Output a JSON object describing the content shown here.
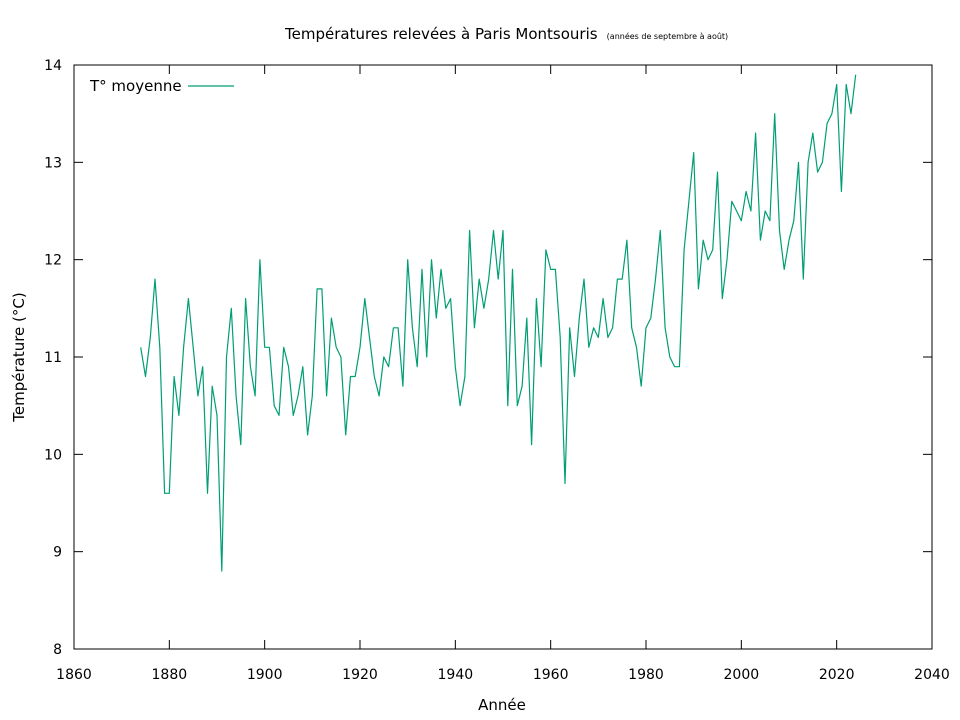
{
  "chart_data": {
    "type": "line",
    "title": "Températures relevées à Paris Montsouris",
    "subtitle": "(années de septembre à août)",
    "xlabel": "Année",
    "ylabel": "Température (°C)",
    "xlim": [
      1860,
      2040
    ],
    "ylim": [
      8,
      14
    ],
    "xticks": [
      1860,
      1880,
      1900,
      1920,
      1940,
      1960,
      1980,
      2000,
      2020,
      2040
    ],
    "yticks": [
      8,
      9,
      10,
      11,
      12,
      13,
      14
    ],
    "grid": false,
    "legend": "top-left",
    "series": [
      {
        "name": "T° moyenne",
        "color": "#009e73",
        "x": [
          1874,
          1875,
          1876,
          1877,
          1878,
          1879,
          1880,
          1881,
          1882,
          1883,
          1884,
          1885,
          1886,
          1887,
          1888,
          1889,
          1890,
          1891,
          1892,
          1893,
          1894,
          1895,
          1896,
          1897,
          1898,
          1899,
          1900,
          1901,
          1902,
          1903,
          1904,
          1905,
          1906,
          1907,
          1908,
          1909,
          1910,
          1911,
          1912,
          1913,
          1914,
          1915,
          1916,
          1917,
          1918,
          1919,
          1920,
          1921,
          1922,
          1923,
          1924,
          1925,
          1926,
          1927,
          1928,
          1929,
          1930,
          1931,
          1932,
          1933,
          1934,
          1935,
          1936,
          1937,
          1938,
          1939,
          1940,
          1941,
          1942,
          1943,
          1944,
          1945,
          1946,
          1947,
          1948,
          1949,
          1950,
          1951,
          1952,
          1953,
          1954,
          1955,
          1956,
          1957,
          1958,
          1959,
          1960,
          1961,
          1962,
          1963,
          1964,
          1965,
          1966,
          1967,
          1968,
          1969,
          1970,
          1971,
          1972,
          1973,
          1974,
          1975,
          1976,
          1977,
          1978,
          1979,
          1980,
          1981,
          1982,
          1983,
          1984,
          1985,
          1986,
          1987,
          1988,
          1989,
          1990,
          1991,
          1992,
          1993,
          1994,
          1995,
          1996,
          1997,
          1998,
          1999,
          2000,
          2001,
          2002,
          2003,
          2004,
          2005,
          2006,
          2007,
          2008,
          2009,
          2010,
          2011,
          2012,
          2013,
          2014,
          2015,
          2016,
          2017,
          2018,
          2019,
          2020,
          2021,
          2022,
          2023,
          2024
        ],
        "values": [
          11.1,
          10.8,
          11.2,
          11.8,
          11.1,
          9.6,
          9.6,
          10.8,
          10.4,
          11.1,
          11.6,
          11.1,
          10.6,
          10.9,
          9.6,
          10.7,
          10.4,
          8.8,
          11.0,
          11.5,
          10.6,
          10.1,
          11.6,
          10.9,
          10.6,
          12.0,
          11.1,
          11.1,
          10.5,
          10.4,
          11.1,
          10.9,
          10.4,
          10.6,
          10.9,
          10.2,
          10.6,
          11.7,
          11.7,
          10.6,
          11.4,
          11.1,
          11.0,
          10.2,
          10.8,
          10.8,
          11.1,
          11.6,
          11.2,
          10.8,
          10.6,
          11.0,
          10.9,
          11.3,
          11.3,
          10.7,
          12.0,
          11.3,
          10.9,
          11.9,
          11.0,
          12.0,
          11.4,
          11.9,
          11.5,
          11.6,
          10.9,
          10.5,
          10.8,
          12.3,
          11.3,
          11.8,
          11.5,
          11.8,
          12.3,
          11.8,
          12.3,
          10.5,
          11.9,
          10.5,
          10.7,
          11.4,
          10.1,
          11.6,
          10.9,
          12.1,
          11.9,
          11.9,
          11.2,
          9.7,
          11.3,
          10.8,
          11.4,
          11.8,
          11.1,
          11.3,
          11.2,
          11.6,
          11.2,
          11.3,
          11.8,
          11.8,
          12.2,
          11.3,
          11.1,
          10.7,
          11.3,
          11.4,
          11.8,
          12.3,
          11.3,
          11.0,
          10.9,
          10.9,
          12.1,
          12.6,
          13.1,
          11.7,
          12.2,
          12.0,
          12.1,
          12.9,
          11.6,
          12.0,
          12.6,
          12.5,
          12.4,
          12.7,
          12.5,
          13.3,
          12.2,
          12.5,
          12.4,
          13.5,
          12.3,
          11.9,
          12.2,
          12.4,
          13.0,
          11.8,
          13.0,
          13.3,
          12.9,
          13.0,
          13.4,
          13.5,
          13.8,
          12.7,
          13.8,
          13.5,
          13.9
        ]
      }
    ]
  }
}
